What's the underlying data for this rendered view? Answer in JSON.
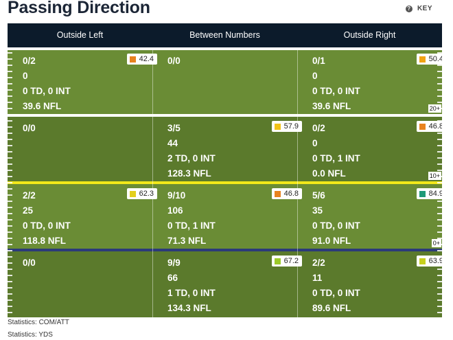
{
  "page": {
    "title": "Passing Direction",
    "key_label": "KEY"
  },
  "columns": [
    "Outside Left",
    "Between Numbers",
    "Outside Right"
  ],
  "rows": [
    {
      "yard": "20+",
      "cells": [
        {
          "lines": [
            "0/2",
            "0",
            "0 TD, 0 INT",
            "39.6 NFL"
          ],
          "grade": "42.4",
          "color": "#e8821f"
        },
        {
          "lines": [
            "0/0"
          ]
        },
        {
          "lines": [
            "0/1",
            "0",
            "0 TD, 0 INT",
            "39.6 NFL"
          ],
          "grade": "50.4",
          "color": "#f2a414"
        }
      ]
    },
    {
      "yard": "10+",
      "cells": [
        {
          "lines": [
            "0/0"
          ]
        },
        {
          "lines": [
            "3/5",
            "44",
            "2 TD, 0 INT",
            "128.3 NFL"
          ],
          "grade": "57.9",
          "color": "#f2c318"
        },
        {
          "lines": [
            "0/2",
            "0",
            "0 TD, 1 INT",
            "0.0 NFL"
          ],
          "grade": "46.8",
          "color": "#e8821f"
        }
      ]
    },
    {
      "yard": "0+",
      "cells": [
        {
          "lines": [
            "2/2",
            "25",
            "0 TD, 0 INT",
            "118.8 NFL"
          ],
          "grade": "62.3",
          "color": "#e3cf1c"
        },
        {
          "lines": [
            "9/10",
            "106",
            "0 TD, 1 INT",
            "71.3 NFL"
          ],
          "grade": "46.8",
          "color": "#e8821f"
        },
        {
          "lines": [
            "5/6",
            "35",
            "0 TD, 0 INT",
            "91.0 NFL"
          ],
          "grade": "84.9",
          "color": "#1f9a78"
        }
      ]
    },
    {
      "yard": "",
      "cells": [
        {
          "lines": [
            "0/0"
          ]
        },
        {
          "lines": [
            "9/9",
            "66",
            "1 TD, 0 INT",
            "134.3 NFL"
          ],
          "grade": "67.2",
          "color": "#9cc92a"
        },
        {
          "lines": [
            "2/2",
            "11",
            "0 TD, 0 INT",
            "89.6 NFL"
          ],
          "grade": "63.9",
          "color": "#c7cf1e"
        }
      ]
    }
  ],
  "footer": [
    "Statistics: COM/ATT",
    "Statistics: YDS"
  ],
  "colors": {
    "header_bg": "#0c1b2b",
    "field_light": "#6a8c35",
    "field_dark": "#5b7a2c",
    "line_of_scrimmage": "#f2e81a",
    "zero_line": "#2b3a7a"
  }
}
